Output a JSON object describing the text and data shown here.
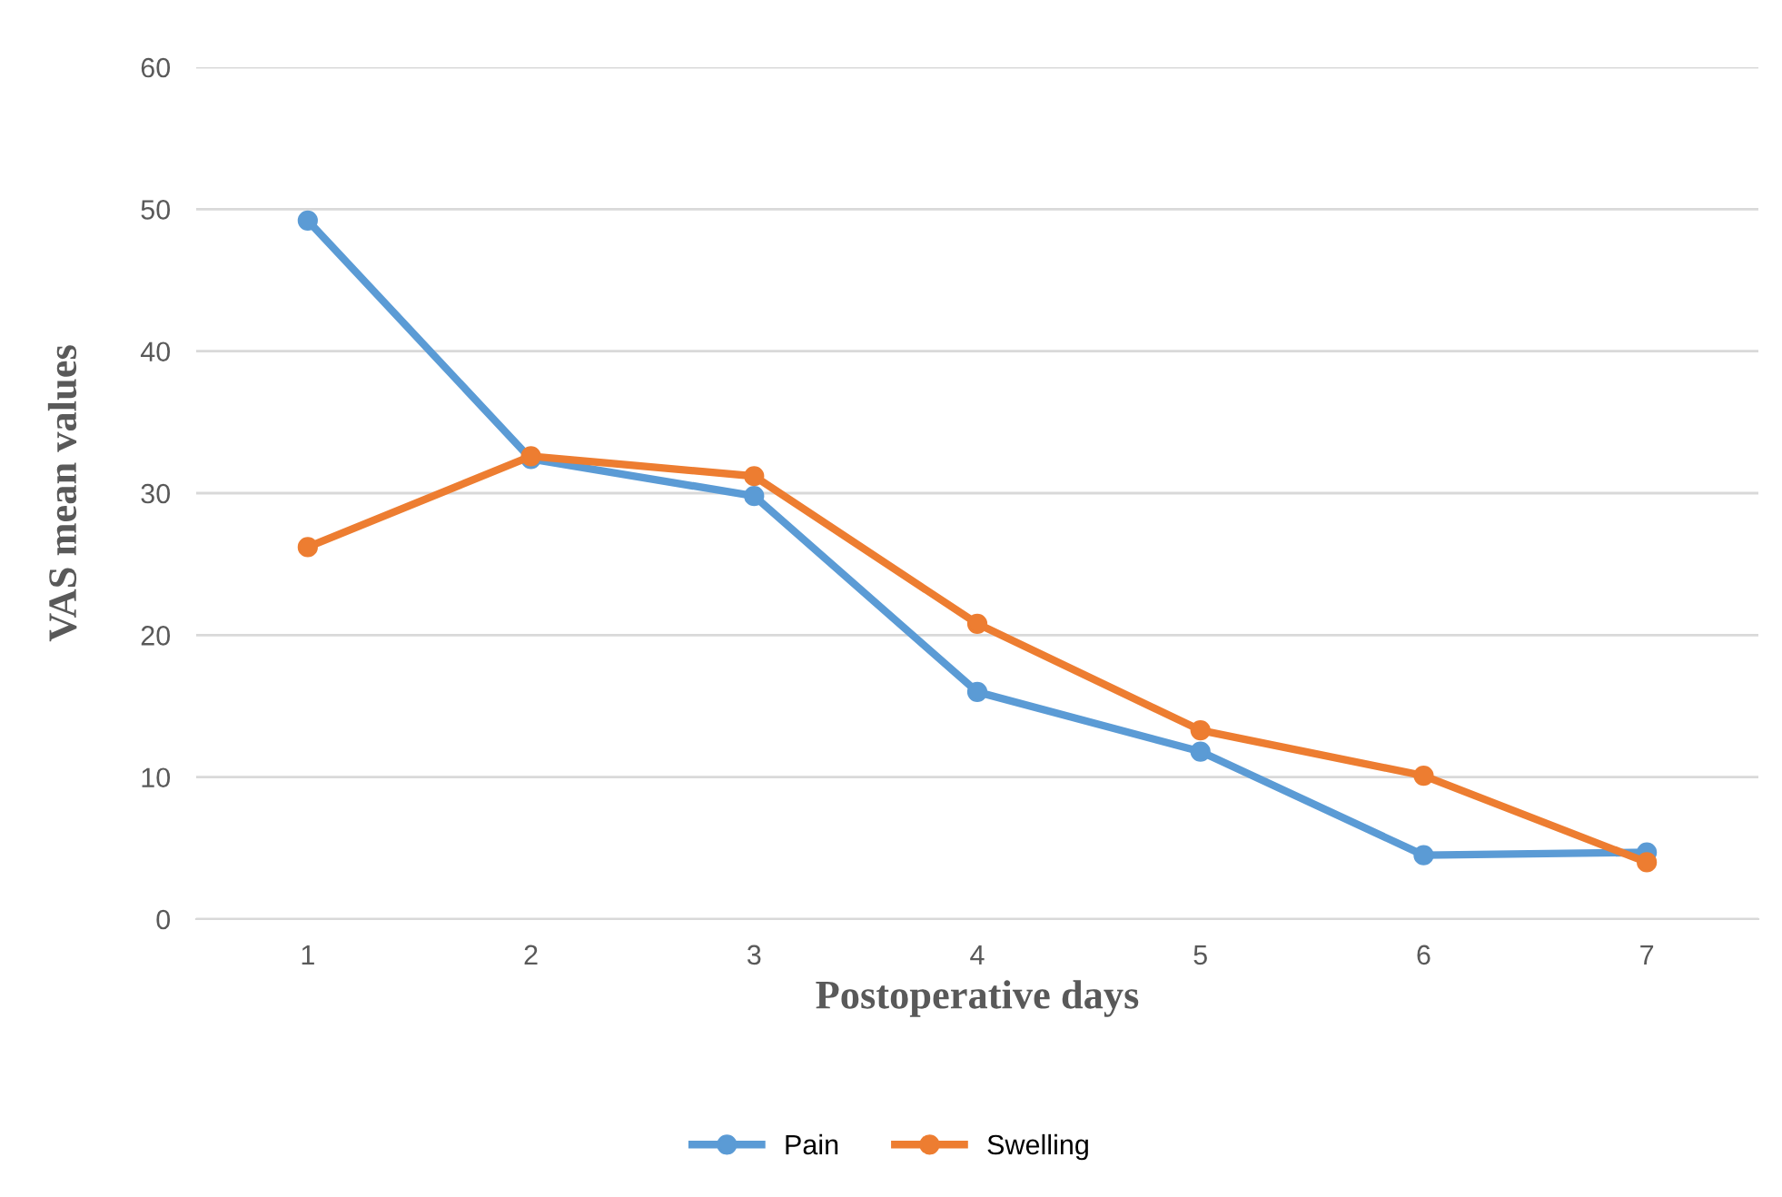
{
  "chart_data": {
    "type": "line",
    "xlabel": "Postoperative days",
    "ylabel": "VAS mean values",
    "categories": [
      "1",
      "2",
      "3",
      "4",
      "5",
      "6",
      "7"
    ],
    "series": [
      {
        "name": "Pain",
        "color": "#5b9bd5",
        "values": [
          49.2,
          32.4,
          29.8,
          16.0,
          11.8,
          4.5,
          4.7
        ]
      },
      {
        "name": "Swelling",
        "color": "#ed7d31",
        "values": [
          26.2,
          32.6,
          31.2,
          20.8,
          13.3,
          10.1,
          4.0
        ]
      }
    ],
    "ylim": [
      0,
      60
    ],
    "yticks": [
      0,
      10,
      20,
      30,
      40,
      50,
      60
    ],
    "grid": "y",
    "legend": "bottom",
    "marker": "circle",
    "line_style": "solid"
  }
}
